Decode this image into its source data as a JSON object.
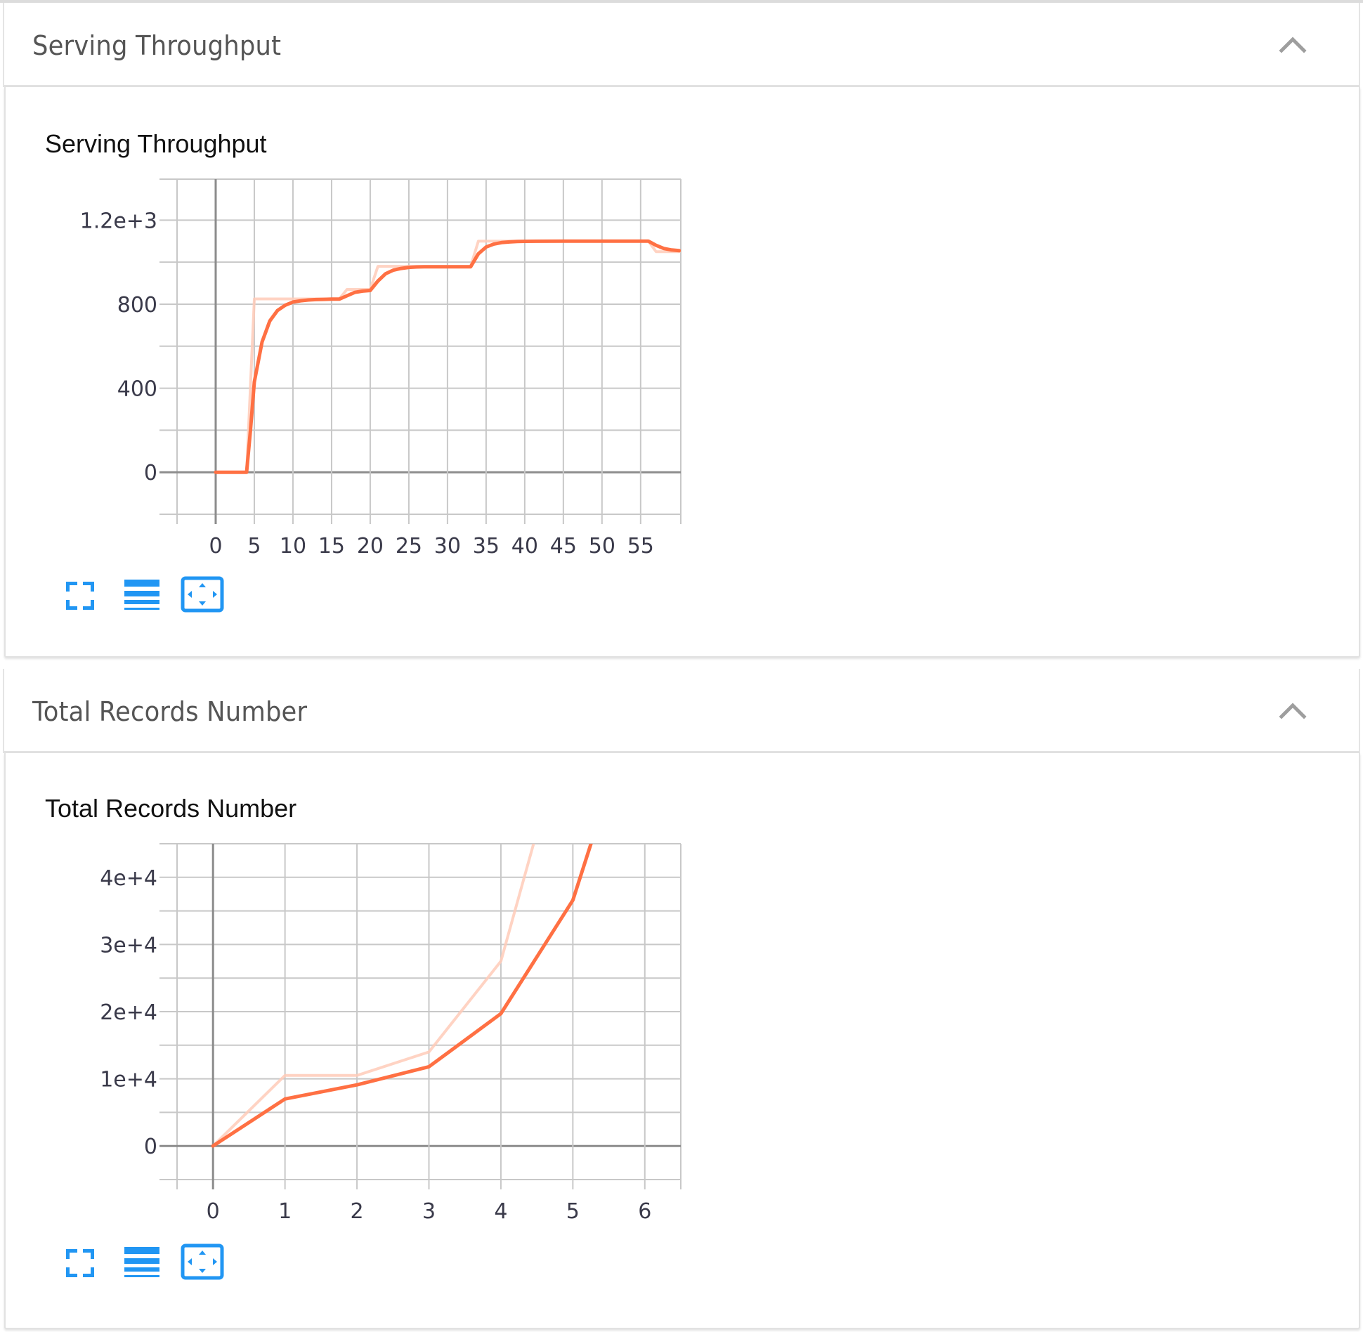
{
  "colors": {
    "accent_line": "#ff7043",
    "raw_line": "#ffcbb9",
    "grid": "#c8c8c8",
    "axis_zero": "#8c8c8c",
    "icon_blue": "#2196f3",
    "chevron": "#9e9e9e",
    "header_text": "#555555"
  },
  "sections": [
    {
      "header_title": "Serving Throughput",
      "collapse_icon": "chevron-up-icon",
      "card_title": "Serving Throughput",
      "toolbar": [
        {
          "name": "fullscreen-button",
          "icon": "expand-corners-icon"
        },
        {
          "name": "toggle-log-scale-button",
          "icon": "lines-icon"
        },
        {
          "name": "fit-domain-button",
          "icon": "fit-to-screen-icon"
        }
      ]
    },
    {
      "header_title": "Total Records Number",
      "collapse_icon": "chevron-up-icon",
      "card_title": "Total Records Number",
      "toolbar": [
        {
          "name": "fullscreen-button",
          "icon": "expand-corners-icon"
        },
        {
          "name": "toggle-log-scale-button",
          "icon": "lines-icon"
        },
        {
          "name": "fit-domain-button",
          "icon": "fit-to-screen-icon"
        }
      ]
    }
  ],
  "chart_data": [
    {
      "type": "line",
      "title": "Serving Throughput",
      "xlabel": "",
      "ylabel": "",
      "xlim": [
        -5,
        60.2
      ],
      "ylim": [
        -200,
        1395
      ],
      "x_ticks": [
        0,
        5,
        10,
        15,
        20,
        25,
        30,
        35,
        40,
        45,
        50,
        55
      ],
      "x_tick_labels": [
        "0",
        "5",
        "10",
        "15",
        "20",
        "25",
        "30",
        "35",
        "40",
        "45",
        "50",
        "55"
      ],
      "y_ticks": [
        0,
        400,
        800,
        1200
      ],
      "y_tick_labels": [
        "0",
        "400",
        "800",
        "1.2e+3"
      ],
      "y_minor_ticks": [
        -200,
        200,
        600,
        1000
      ],
      "grid": true,
      "legend": null,
      "series": [
        {
          "name": "raw",
          "style": "faded",
          "x": [
            0,
            4,
            5,
            6,
            7,
            8,
            9,
            10,
            11,
            12,
            13,
            14,
            15,
            16,
            17,
            18,
            19,
            20,
            21,
            22,
            23,
            24,
            25,
            26,
            27,
            28,
            29,
            30,
            31,
            32,
            33,
            34,
            35,
            36,
            37,
            38,
            39,
            40,
            45,
            50,
            55,
            56,
            57,
            58,
            59,
            60
          ],
          "y": [
            0,
            0,
            825,
            825,
            825,
            825,
            825,
            825,
            825,
            825,
            825,
            825,
            825,
            825,
            870,
            870,
            870,
            870,
            980,
            980,
            980,
            980,
            980,
            980,
            980,
            980,
            980,
            980,
            980,
            980,
            980,
            1100,
            1100,
            1100,
            1100,
            1100,
            1100,
            1100,
            1100,
            1100,
            1100,
            1100,
            1050,
            1050,
            1050,
            1050
          ]
        },
        {
          "name": "smoothed",
          "style": "solid",
          "x": [
            0,
            4,
            4.5,
            5,
            6,
            7,
            8,
            9,
            10,
            11,
            12,
            13,
            14,
            15,
            16,
            17,
            18,
            19,
            20,
            21,
            22,
            23,
            24,
            25,
            26,
            27,
            28,
            29,
            30,
            31,
            32,
            33,
            34,
            35,
            36,
            37,
            38,
            39,
            40,
            45,
            50,
            55,
            56,
            57,
            58,
            59,
            60
          ],
          "y": [
            0,
            0,
            200,
            430,
            620,
            720,
            770,
            795,
            810,
            816,
            820,
            822,
            823,
            824,
            824,
            840,
            856,
            862,
            865,
            910,
            945,
            962,
            970,
            975,
            977,
            978,
            978,
            978,
            978,
            978,
            978,
            978,
            1040,
            1072,
            1086,
            1093,
            1096,
            1098,
            1099,
            1100,
            1100,
            1100,
            1100,
            1080,
            1065,
            1058,
            1055
          ]
        }
      ]
    },
    {
      "type": "line",
      "title": "Total Records Number",
      "xlabel": "",
      "ylabel": "",
      "xlim": [
        -0.5,
        6.5
      ],
      "ylim": [
        -5000,
        45000
      ],
      "x_ticks": [
        0,
        1,
        2,
        3,
        4,
        5,
        6
      ],
      "x_tick_labels": [
        "0",
        "1",
        "2",
        "3",
        "4",
        "5",
        "6"
      ],
      "y_ticks": [
        0,
        10000,
        20000,
        30000,
        40000
      ],
      "y_tick_labels": [
        "0",
        "1e+4",
        "2e+4",
        "3e+4",
        "4e+4"
      ],
      "y_minor_ticks": [
        -5000,
        5000,
        15000,
        25000,
        35000,
        45000
      ],
      "grid": true,
      "legend": null,
      "series": [
        {
          "name": "raw",
          "style": "faded",
          "x": [
            0,
            1,
            2,
            3,
            4,
            5
          ],
          "y": [
            0,
            10500,
            10500,
            14000,
            27500,
            66000
          ]
        },
        {
          "name": "smoothed",
          "style": "solid",
          "x": [
            0,
            1,
            2,
            3,
            4,
            5,
            6
          ],
          "y": [
            0,
            7000,
            9100,
            11800,
            19700,
            36600,
            70000
          ]
        }
      ]
    }
  ]
}
